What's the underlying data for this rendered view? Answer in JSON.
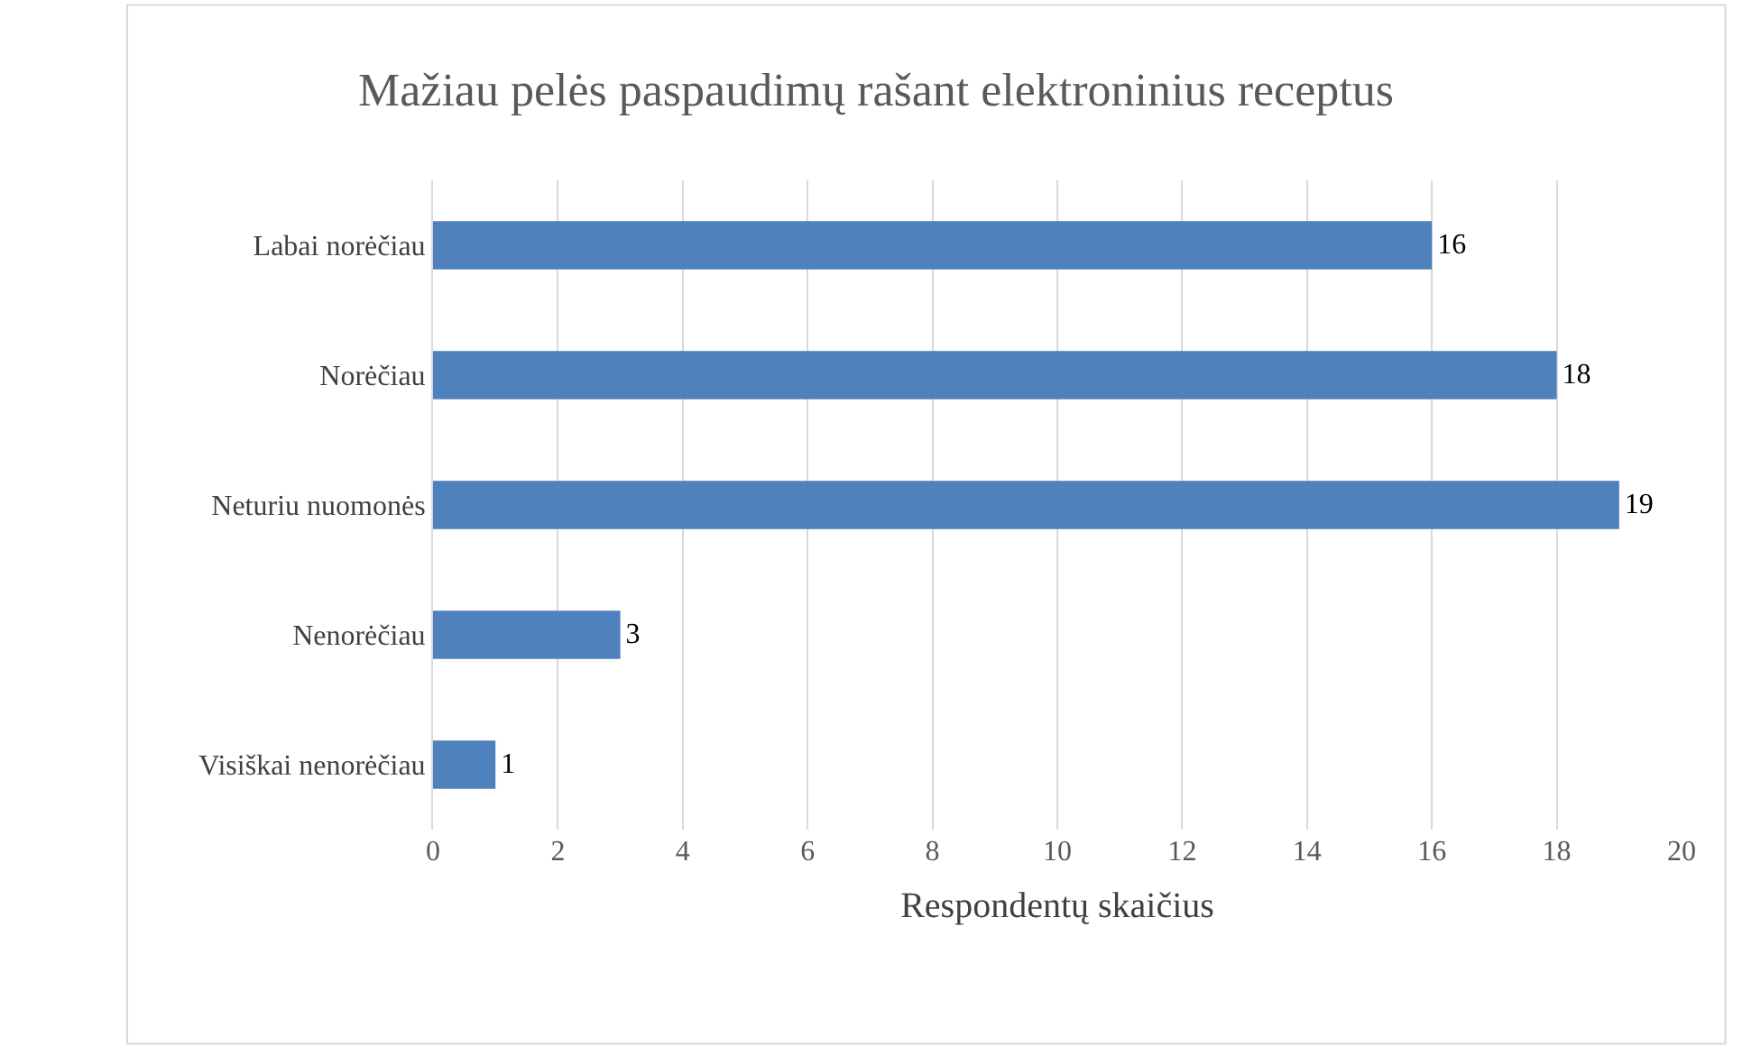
{
  "chart_data": {
    "type": "bar",
    "orientation": "horizontal",
    "title": "Mažiau pelės paspaudimų rašant elektroninius receptus",
    "xlabel": "Respondentų skaičius",
    "categories": [
      "Labai norėčiau",
      "Norėčiau",
      "Neturiu nuomonės",
      "Nenorėčiau",
      "Visiškai nenorėčiau"
    ],
    "values": [
      16,
      18,
      19,
      3,
      1
    ],
    "color": "#4f81bd",
    "xlim": [
      0,
      20
    ],
    "xticks": [
      0,
      2,
      4,
      6,
      8,
      10,
      12,
      14,
      16,
      18,
      20
    ],
    "grid": "x",
    "data_labels": true
  }
}
